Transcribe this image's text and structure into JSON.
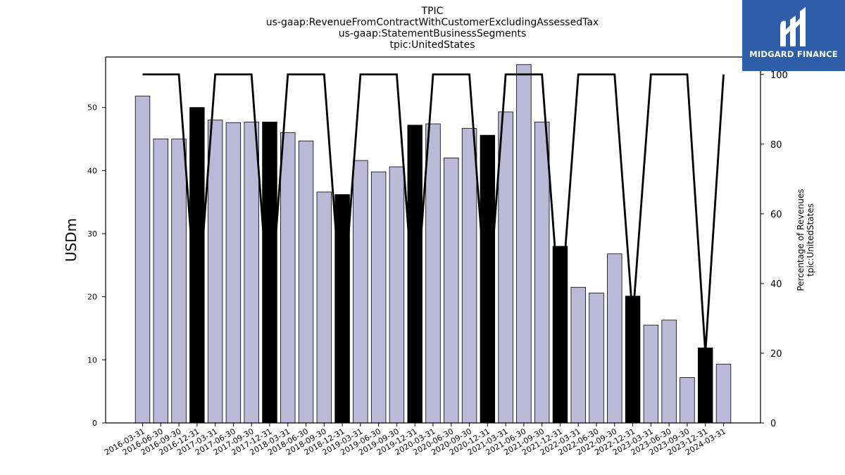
{
  "chart_data": {
    "type": "bar",
    "title_lines": [
      "TPIC",
      "us-gaap:RevenueFromContractWithCustomerExcludingAssessedTax",
      "us-gaap:StatementBusinessSegments",
      "tpic:UnitedStates"
    ],
    "ylabel": "USDm",
    "y2label_lines": [
      "Percentage of Revenues",
      "tpic:UnitedStates"
    ],
    "ylim": [
      0,
      58
    ],
    "y2lim": [
      0,
      105
    ],
    "yticks": [
      0,
      10,
      20,
      30,
      40,
      50
    ],
    "y2ticks": [
      0,
      20,
      40,
      60,
      80,
      100
    ],
    "categories": [
      "2016-03-31",
      "2016-06-30",
      "2016-09-30",
      "2016-12-31",
      "2017-03-31",
      "2017-06-30",
      "2017-09-30",
      "2017-12-31",
      "2018-03-31",
      "2018-06-30",
      "2018-09-30",
      "2018-12-31",
      "2019-03-31",
      "2019-06-30",
      "2019-09-30",
      "2019-12-31",
      "2020-03-31",
      "2020-06-30",
      "2020-09-30",
      "2020-12-31",
      "2021-03-31",
      "2021-06-30",
      "2021-09-30",
      "2021-12-31",
      "2022-03-31",
      "2022-06-30",
      "2022-09-30",
      "2022-12-31",
      "2023-03-31",
      "2023-06-30",
      "2023-09-30",
      "2023-12-31",
      "2024-03-31"
    ],
    "values": [
      51.8,
      45.0,
      45.0,
      50.0,
      48.0,
      47.6,
      47.7,
      47.7,
      46.0,
      44.7,
      36.6,
      36.2,
      41.6,
      39.8,
      40.6,
      47.2,
      47.4,
      42.0,
      46.7,
      45.6,
      49.3,
      56.8,
      47.7,
      28.0,
      21.5,
      20.6,
      26.8,
      20.1,
      15.5,
      16.3,
      7.2,
      11.9,
      9.3
    ],
    "highlight": [
      false,
      false,
      false,
      true,
      false,
      false,
      false,
      true,
      false,
      false,
      false,
      true,
      false,
      false,
      false,
      true,
      false,
      false,
      false,
      true,
      false,
      false,
      false,
      true,
      false,
      false,
      false,
      true,
      false,
      false,
      false,
      true,
      false
    ],
    "line_series": {
      "values": [
        100,
        100,
        100,
        30,
        100,
        100,
        100,
        30,
        100,
        100,
        100,
        30,
        100,
        100,
        100,
        30,
        100,
        100,
        100,
        30,
        100,
        100,
        100,
        30,
        100,
        100,
        100,
        30,
        100,
        100,
        100,
        20,
        100
      ]
    },
    "colors": {
      "bar": "#bcb8d8",
      "bar_highlight": "#000000",
      "line": "#000000"
    },
    "logo_text": "MIDGARD FINANCE"
  }
}
